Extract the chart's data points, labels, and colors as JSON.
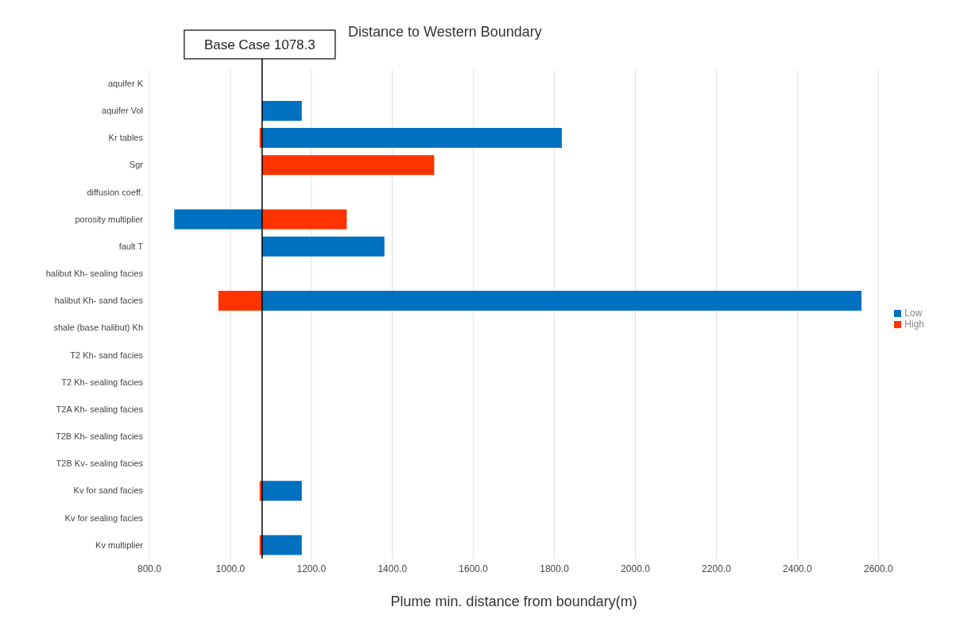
{
  "chart_data": {
    "type": "bar",
    "orientation": "horizontal",
    "title": "Distance to Western Boundary",
    "xlabel": "Plume min. distance from boundary(m)",
    "categories": [
      "aquifer K",
      "aquifer Vol",
      "Kr tables",
      "Sgr",
      "diffusion coeff.",
      "porosity multiplier",
      "fault T",
      "halibut Kh- sealing facies",
      "halibut Kh- sand facies",
      "shale (base halibut) Kh",
      "T2 Kh- sand facies",
      "T2 Kh- sealing facies",
      "T2A Kh- sealing facies",
      "T2B Kh- sealing facies",
      "T2B Kv- sealing facies",
      "Kv for sand facies",
      "Kv for sealing facies",
      "Kv multiplier"
    ],
    "series": [
      {
        "name": "Low",
        "color": "#0070c0",
        "values": [
          null,
          98,
          740,
          null,
          null,
          -217,
          302,
          null,
          1480,
          null,
          null,
          null,
          null,
          null,
          null,
          98,
          null,
          98
        ],
        "base": [
          null,
          1078.3,
          1078.3,
          null,
          null,
          1078.3,
          1078.3,
          null,
          1078.3,
          null,
          null,
          null,
          null,
          null,
          null,
          1078.3,
          null,
          1078.3
        ]
      },
      {
        "name": "High",
        "color": "#ff3300",
        "values": [
          null,
          null,
          -6,
          425,
          null,
          209,
          null,
          null,
          -108,
          null,
          null,
          null,
          null,
          null,
          null,
          -6,
          null,
          -6
        ],
        "base": [
          null,
          null,
          1078.3,
          1078.3,
          null,
          1078.3,
          null,
          null,
          1078.3,
          null,
          null,
          null,
          null,
          null,
          null,
          1078.3,
          null,
          1078.3
        ]
      }
    ],
    "xlim": [
      800,
      2600
    ],
    "xticks": [
      {
        "value": 800,
        "label": "800.0"
      },
      {
        "value": 1000,
        "label": "1000.0"
      },
      {
        "value": 1200,
        "label": "1200.0"
      },
      {
        "value": 1400,
        "label": "1400.0"
      },
      {
        "value": 1600,
        "label": "1600.0"
      },
      {
        "value": 1800,
        "label": "1800.0"
      },
      {
        "value": 2000,
        "label": "2000.0"
      },
      {
        "value": 2200,
        "label": "2200.0"
      },
      {
        "value": 2400,
        "label": "2400.0"
      },
      {
        "value": 2600,
        "label": "2600.0"
      }
    ],
    "ref_lines": [
      {
        "axis": "x",
        "value": 1078.3,
        "label": "Base Case 1078.3",
        "color": "#000000"
      }
    ],
    "grid": "x",
    "legend": "right"
  }
}
